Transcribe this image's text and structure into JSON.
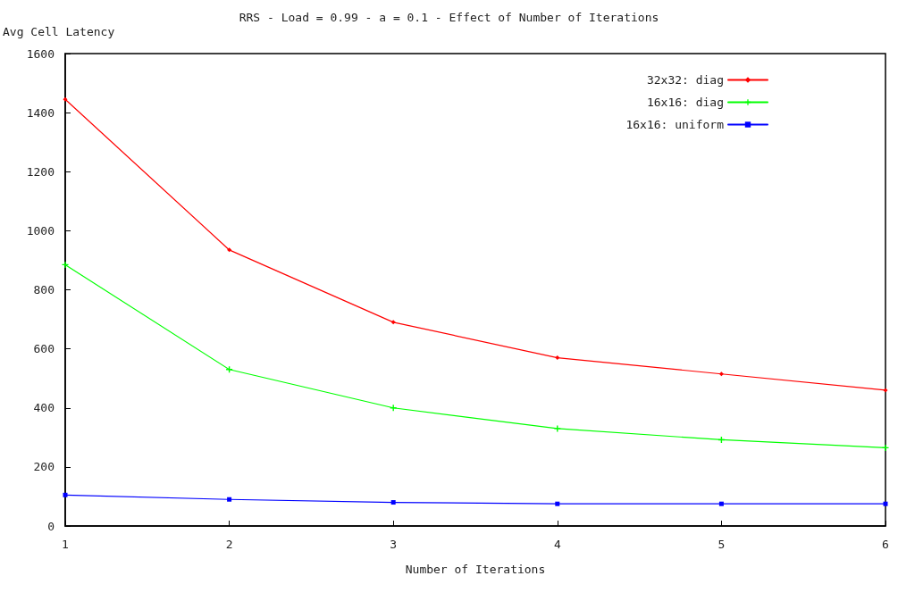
{
  "chart_data": {
    "type": "line",
    "title": "RRS - Load = 0.99 - a = 0.1 - Effect of Number of Iterations",
    "xlabel": "Number of Iterations",
    "ylabel": "Avg Cell Latency",
    "x": [
      1,
      2,
      3,
      4,
      5,
      6
    ],
    "series": [
      {
        "name": "32x32: diag",
        "color": "#ff0000",
        "marker": "diamond",
        "values": [
          1445,
          935,
          690,
          570,
          515,
          460
        ]
      },
      {
        "name": "16x16: diag",
        "color": "#00ff00",
        "marker": "cross",
        "values": [
          885,
          530,
          400,
          330,
          292,
          265
        ]
      },
      {
        "name": "16x16: uniform",
        "color": "#0000ff",
        "marker": "square",
        "values": [
          105,
          90,
          80,
          75,
          75,
          75
        ]
      }
    ],
    "xlim": [
      1,
      6
    ],
    "xticks": [
      1,
      2,
      3,
      4,
      5,
      6
    ],
    "ylim": [
      0,
      1600
    ],
    "yticks": [
      0,
      200,
      400,
      600,
      800,
      1000,
      1200,
      1400,
      1600
    ],
    "grid": false,
    "legend": "top right",
    "line_style": "solid"
  }
}
